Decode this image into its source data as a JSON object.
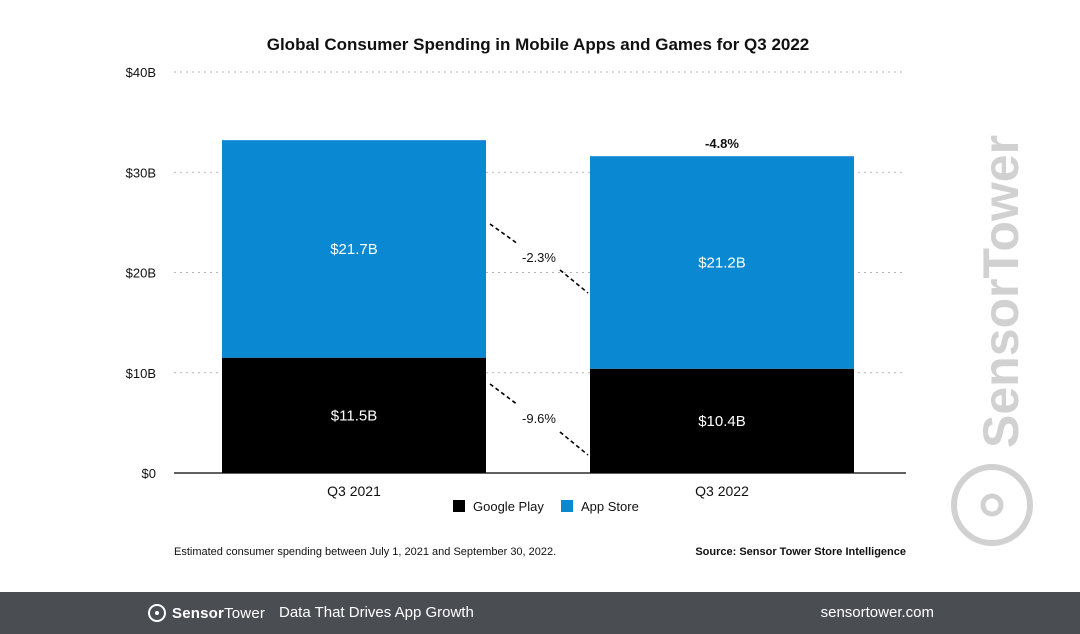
{
  "chart_data": {
    "type": "bar",
    "stacked": true,
    "title": "Global Consumer Spending in Mobile Apps and Games for Q3 2022",
    "categories": [
      "Q3 2021",
      "Q3 2022"
    ],
    "series": [
      {
        "name": "Google Play",
        "color": "#000000",
        "values": [
          11.5,
          10.4
        ],
        "labels": [
          "$11.5B",
          "$10.4B"
        ]
      },
      {
        "name": "App Store",
        "color": "#0a88d2",
        "values": [
          21.7,
          21.2
        ],
        "labels": [
          "$21.7B",
          "$21.2B"
        ]
      }
    ],
    "ylim": [
      0,
      40
    ],
    "yticks": [
      0,
      10,
      20,
      30,
      40
    ],
    "ytick_labels": [
      "$0",
      "$10B",
      "$20B",
      "$30B",
      "$40B"
    ],
    "total_change_label": "-4.8%",
    "segment_change_labels": {
      "app_store": "-2.3%",
      "google_play": "-9.6%"
    },
    "grid": true,
    "legend": "bottom"
  },
  "footnote": "Estimated consumer spending between July 1, 2021 and September 30, 2022.",
  "source": "Source: Sensor Tower Store Intelligence",
  "watermark": "SensorTower",
  "footer": {
    "brand_bold": "Sensor",
    "brand_rest": "Tower",
    "tagline": "Data That Drives App Growth",
    "site": "sensortower.com"
  },
  "colors": {
    "app_store": "#0a88d2",
    "google_play": "#000000",
    "footer_bg": "#4a4d52"
  }
}
